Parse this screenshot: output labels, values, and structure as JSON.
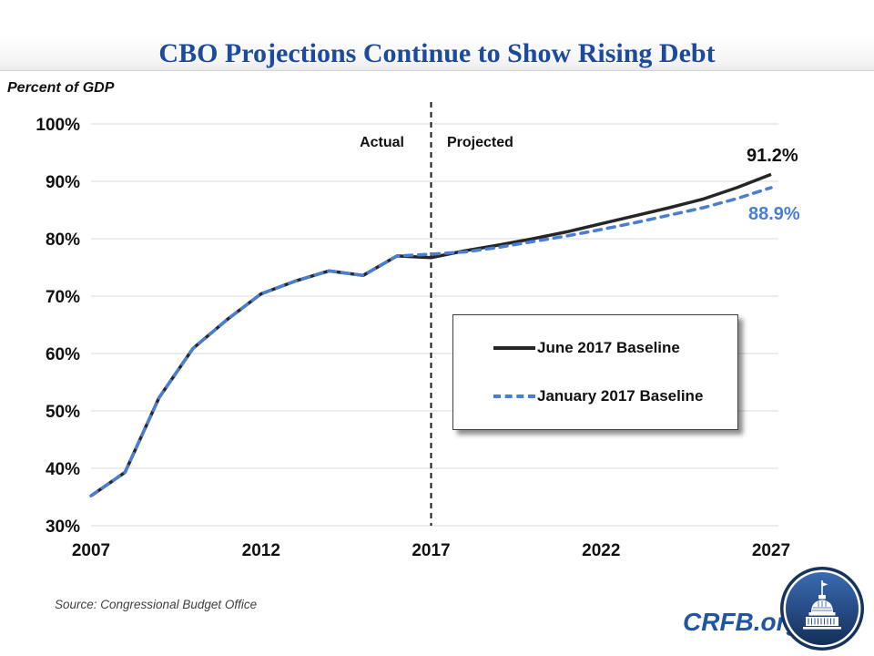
{
  "page": {
    "title": "CBO Projections Continue to Show Rising Debt",
    "axis_unit_label": "Percent of GDP",
    "source": "Source: Congressional Budget Office",
    "brand": "CRFB.org"
  },
  "colors": {
    "title_blue": "#1c4a9c",
    "june_line": "#262626",
    "january_line": "#4a7ed2",
    "gridline": "#d9d9d9",
    "divider": "#1a1a1a",
    "brand_blue": "#2155a3",
    "logo_navy": "#16335e"
  },
  "chart_data": {
    "type": "line",
    "title": "CBO Projections Continue to Show Rising Debt",
    "xlabel": "",
    "ylabel": "Percent of GDP",
    "ylim": [
      30,
      100
    ],
    "grid": "horizontal",
    "legend_position": "center-right",
    "yticks": [
      30,
      40,
      50,
      60,
      70,
      80,
      90,
      100
    ],
    "ytick_labels": [
      "30%",
      "40%",
      "50%",
      "60%",
      "70%",
      "80%",
      "90%",
      "100%"
    ],
    "xticks": [
      2007,
      2012,
      2017,
      2022,
      2027
    ],
    "xtick_labels": [
      "2007",
      "2012",
      "2017",
      "2022",
      "2027"
    ],
    "x": [
      2007,
      2008,
      2009,
      2010,
      2011,
      2012,
      2013,
      2014,
      2015,
      2016,
      2017,
      2018,
      2019,
      2020,
      2021,
      2022,
      2023,
      2024,
      2025,
      2026,
      2027
    ],
    "divider": {
      "x": 2017,
      "left_label": "Actual",
      "right_label": "Projected"
    },
    "series": [
      {
        "name": "June 2017 Baseline",
        "style": "solid",
        "color": "#262626",
        "end_label": "91.2%",
        "values": [
          35.2,
          39.3,
          52.3,
          60.9,
          65.9,
          70.4,
          72.6,
          74.4,
          73.6,
          77.0,
          76.7,
          77.9,
          78.9,
          80.0,
          81.2,
          82.6,
          84.0,
          85.4,
          86.9,
          88.9,
          91.2
        ]
      },
      {
        "name": "January 2017 Baseline",
        "style": "dashed",
        "color": "#4a7ed2",
        "end_label": "88.9%",
        "values": [
          35.2,
          39.3,
          52.3,
          60.9,
          65.9,
          70.4,
          72.6,
          74.4,
          73.6,
          77.0,
          77.3,
          77.7,
          78.5,
          79.5,
          80.5,
          81.6,
          82.8,
          84.1,
          85.4,
          87.0,
          88.9
        ]
      }
    ]
  }
}
